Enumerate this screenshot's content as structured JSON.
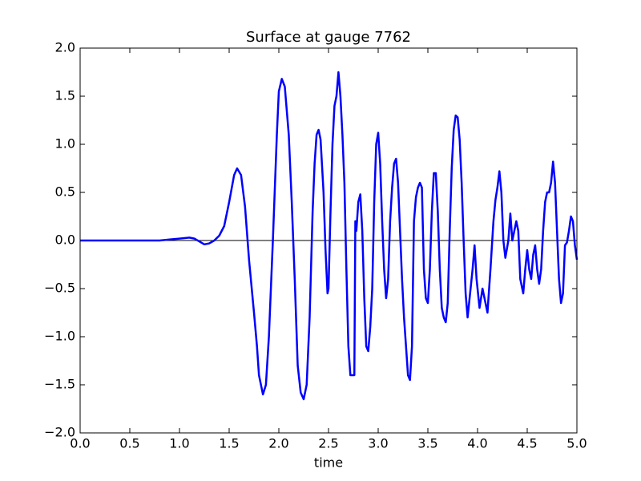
{
  "chart_data": {
    "type": "line",
    "title": "Surface at gauge 7762",
    "x_label": "time",
    "series": [
      {
        "color": "#0000ff",
        "x": [
          0,
          0.2,
          0.4,
          0.6,
          0.8,
          0.9,
          1.0,
          1.1,
          1.15,
          1.2,
          1.25,
          1.3,
          1.35,
          1.4,
          1.45,
          1.5,
          1.55,
          1.58,
          1.62,
          1.66,
          1.7,
          1.75,
          1.78,
          1.8,
          1.84,
          1.87,
          1.9,
          1.94,
          1.98,
          2.0,
          2.03,
          2.06,
          2.1,
          2.13,
          2.16,
          2.19,
          2.22,
          2.25,
          2.28,
          2.31,
          2.34,
          2.36,
          2.38,
          2.4,
          2.42,
          2.45,
          2.47,
          2.49,
          2.5,
          2.52,
          2.54,
          2.56,
          2.58,
          2.6,
          2.62,
          2.64,
          2.66,
          2.68,
          2.7,
          2.72,
          2.76,
          2.77,
          2.78,
          2.8,
          2.82,
          2.84,
          2.86,
          2.88,
          2.9,
          2.92,
          2.94,
          2.96,
          2.98,
          3.0,
          3.02,
          3.04,
          3.06,
          3.08,
          3.1,
          3.12,
          3.14,
          3.16,
          3.18,
          3.2,
          3.22,
          3.24,
          3.26,
          3.28,
          3.3,
          3.32,
          3.34,
          3.36,
          3.38,
          3.4,
          3.42,
          3.44,
          3.46,
          3.48,
          3.5,
          3.52,
          3.54,
          3.56,
          3.58,
          3.6,
          3.62,
          3.64,
          3.66,
          3.68,
          3.7,
          3.72,
          3.74,
          3.76,
          3.78,
          3.8,
          3.82,
          3.84,
          3.86,
          3.88,
          3.9,
          3.92,
          3.95,
          3.97,
          3.99,
          4.02,
          4.05,
          4.07,
          4.1,
          4.13,
          4.16,
          4.18,
          4.2,
          4.22,
          4.24,
          4.26,
          4.28,
          4.31,
          4.33,
          4.35,
          4.37,
          4.39,
          4.41,
          4.43,
          4.46,
          4.48,
          4.5,
          4.52,
          4.54,
          4.56,
          4.58,
          4.6,
          4.62,
          4.64,
          4.66,
          4.68,
          4.7,
          4.72,
          4.74,
          4.76,
          4.78,
          4.8,
          4.82,
          4.84,
          4.86,
          4.88,
          4.9,
          4.92,
          4.94,
          4.96,
          4.98,
          5.0
        ],
        "values": [
          0,
          0,
          0,
          0,
          0,
          0.01,
          0.02,
          0.03,
          0.02,
          -0.01,
          -0.04,
          -0.03,
          0,
          0.05,
          0.15,
          0.4,
          0.68,
          0.75,
          0.68,
          0.35,
          -0.2,
          -0.75,
          -1.1,
          -1.4,
          -1.6,
          -1.5,
          -1.0,
          0.0,
          1.1,
          1.55,
          1.68,
          1.6,
          1.1,
          0.4,
          -0.4,
          -1.3,
          -1.58,
          -1.65,
          -1.5,
          -0.8,
          0.3,
          0.8,
          1.1,
          1.15,
          1.05,
          0.5,
          -0.1,
          -0.55,
          -0.5,
          0.3,
          1.0,
          1.4,
          1.5,
          1.75,
          1.5,
          1.1,
          0.6,
          -0.3,
          -1.1,
          -1.4,
          -1.4,
          0.2,
          0.1,
          0.4,
          0.48,
          0.1,
          -0.6,
          -1.1,
          -1.15,
          -0.9,
          -0.5,
          0.4,
          1.0,
          1.12,
          0.8,
          0.2,
          -0.3,
          -0.6,
          -0.4,
          0.2,
          0.55,
          0.8,
          0.85,
          0.6,
          0.1,
          -0.4,
          -0.8,
          -1.1,
          -1.4,
          -1.45,
          -1.1,
          0.2,
          0.45,
          0.55,
          0.6,
          0.55,
          -0.3,
          -0.6,
          -0.65,
          -0.3,
          0.3,
          0.7,
          0.7,
          0.3,
          -0.3,
          -0.7,
          -0.8,
          -0.85,
          -0.65,
          0.1,
          0.75,
          1.15,
          1.3,
          1.28,
          1.05,
          0.6,
          0.0,
          -0.55,
          -0.8,
          -0.6,
          -0.3,
          -0.05,
          -0.4,
          -0.7,
          -0.5,
          -0.6,
          -0.75,
          -0.3,
          0.2,
          0.42,
          0.55,
          0.72,
          0.5,
          0.0,
          -0.18,
          0.0,
          0.28,
          0.0,
          0.1,
          0.2,
          0.1,
          -0.4,
          -0.55,
          -0.3,
          -0.1,
          -0.3,
          -0.4,
          -0.15,
          -0.05,
          -0.3,
          -0.45,
          -0.3,
          0.1,
          0.4,
          0.5,
          0.5,
          0.6,
          0.82,
          0.6,
          0.1,
          -0.4,
          -0.65,
          -0.55,
          -0.05,
          -0.02,
          0.1,
          0.25,
          0.2,
          -0.05,
          -0.2
        ]
      }
    ],
    "reference_line": 0,
    "xlim": [
      0,
      5
    ],
    "ylim": [
      -2,
      2
    ],
    "xticks": [
      {
        "value": 0,
        "label": "0.0"
      },
      {
        "value": 0.5,
        "label": "0.5"
      },
      {
        "value": 1,
        "label": "1.0"
      },
      {
        "value": 1.5,
        "label": "1.5"
      },
      {
        "value": 2,
        "label": "2.0"
      },
      {
        "value": 2.5,
        "label": "2.5"
      },
      {
        "value": 3,
        "label": "3.0"
      },
      {
        "value": 3.5,
        "label": "3.5"
      },
      {
        "value": 4,
        "label": "4.0"
      },
      {
        "value": 4.5,
        "label": "4.5"
      },
      {
        "value": 5,
        "label": "5.0"
      }
    ],
    "yticks": [
      {
        "value": -2,
        "label": "−2.0"
      },
      {
        "value": -1.5,
        "label": "−1.5"
      },
      {
        "value": -1,
        "label": "−1.0"
      },
      {
        "value": -0.5,
        "label": "−0.5"
      },
      {
        "value": 0,
        "label": "0.0"
      },
      {
        "value": 0.5,
        "label": "0.5"
      },
      {
        "value": 1,
        "label": "1.0"
      },
      {
        "value": 1.5,
        "label": "1.5"
      },
      {
        "value": 2,
        "label": "2.0"
      }
    ]
  }
}
